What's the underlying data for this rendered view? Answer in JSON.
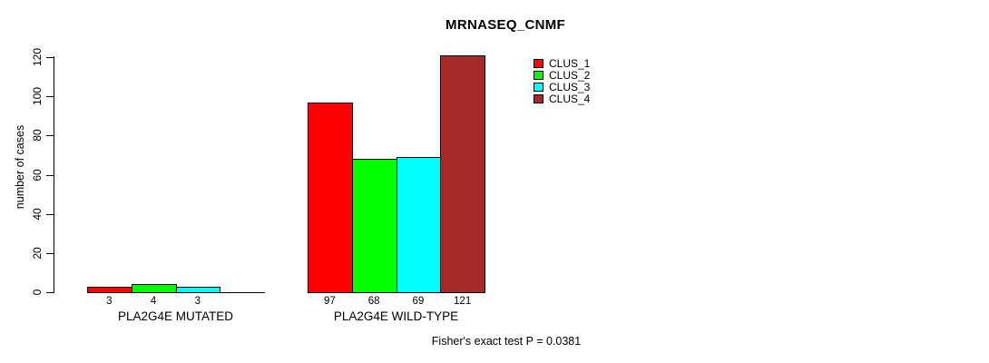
{
  "chart_data": {
    "type": "bar",
    "title": "MRNASEQ_CNMF",
    "ylabel": "number of cases",
    "xlabel": "",
    "ylim": [
      0,
      120
    ],
    "yticks": [
      0,
      20,
      40,
      60,
      80,
      100,
      120
    ],
    "grid": false,
    "legend_position": "top-right",
    "annotation": "Fisher's exact test P = 0.0381",
    "categories": [
      "PLA2G4E MUTATED",
      "PLA2G4E WILD-TYPE"
    ],
    "series": [
      {
        "name": "CLUS_1",
        "color": "#ff0000",
        "values": [
          3,
          97
        ]
      },
      {
        "name": "CLUS_2",
        "color": "#00ff00",
        "values": [
          4,
          68
        ]
      },
      {
        "name": "CLUS_3",
        "color": "#00ffff",
        "values": [
          3,
          69
        ]
      },
      {
        "name": "CLUS_4",
        "color": "#a52a2a",
        "values": [
          0,
          121
        ]
      }
    ],
    "bar_value_labels": [
      [
        "3",
        "4",
        "3",
        ""
      ],
      [
        "97",
        "68",
        "69",
        "121"
      ]
    ]
  }
}
